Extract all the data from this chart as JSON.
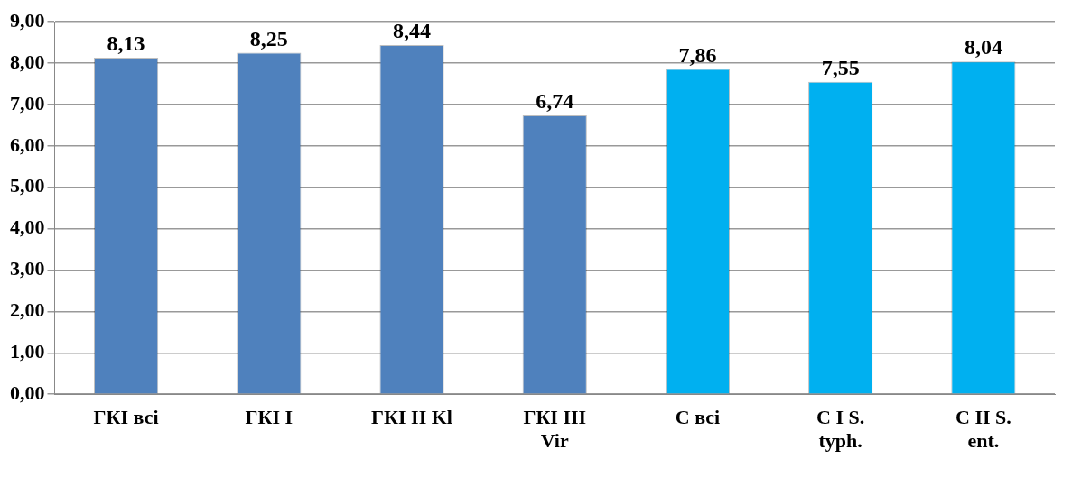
{
  "chart_data": {
    "type": "bar",
    "categories": [
      "ГКІ всі",
      "ГКІ І",
      "ГКІ ІІ Kl",
      "ГКІ ІІІ Vir",
      "С всі",
      "С І S. typh.",
      "С ІІ S. ent."
    ],
    "values": [
      8.13,
      8.25,
      8.44,
      6.74,
      7.86,
      7.55,
      8.04
    ],
    "colors": [
      "#4f81bd",
      "#4f81bd",
      "#4f81bd",
      "#4f81bd",
      "#00b0f0",
      "#00b0f0",
      "#00b0f0"
    ],
    "value_labels": [
      "8,13",
      "8,25",
      "8,44",
      "6,74",
      "7,86",
      "7,55",
      "8,04"
    ],
    "ylim": [
      0,
      9
    ],
    "yticks": [
      {
        "value": 0,
        "label": "0,00"
      },
      {
        "value": 1,
        "label": "1,00"
      },
      {
        "value": 2,
        "label": "2,00"
      },
      {
        "value": 3,
        "label": "3,00"
      },
      {
        "value": 4,
        "label": "4,00"
      },
      {
        "value": 5,
        "label": "5,00"
      },
      {
        "value": 6,
        "label": "6,00"
      },
      {
        "value": 7,
        "label": "7,00"
      },
      {
        "value": 8,
        "label": "8,00"
      },
      {
        "value": 9,
        "label": "9,00"
      }
    ],
    "grid": "y",
    "legend": false
  }
}
